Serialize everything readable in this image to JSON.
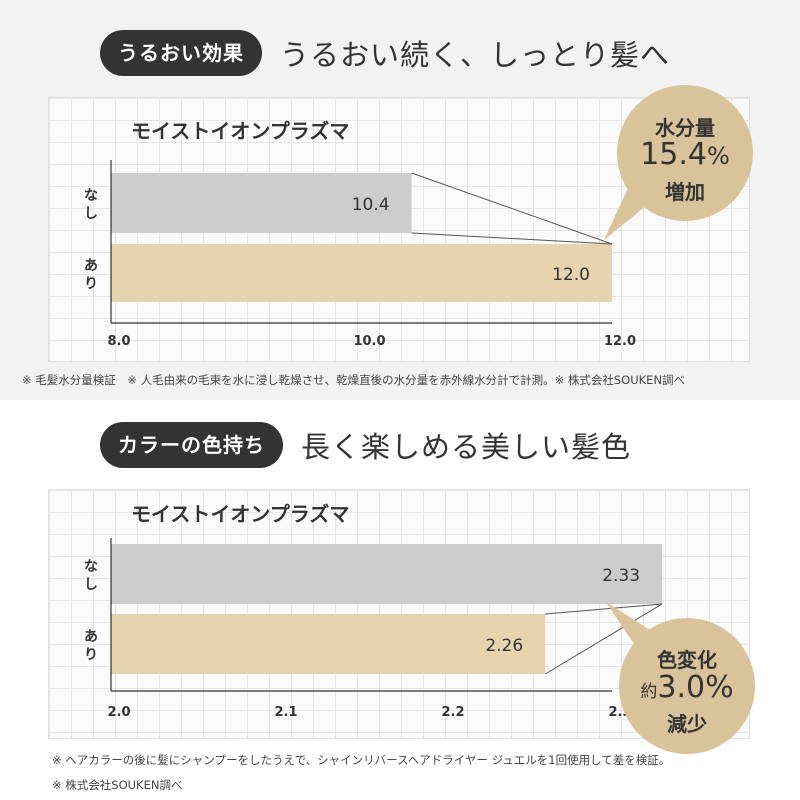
{
  "section1": {
    "pill": "うるおい効果",
    "headline": "うるおい続く、しっとり髪へ",
    "badge": {
      "line1": "水分量",
      "number": "15.4",
      "unit": "%",
      "line3": "増加"
    },
    "note": "※ 毛髪水分量検証　※ 人毛由来の毛束を水に浸し乾燥させ、乾燥直後の水分量を赤外線水分計で計測。※ 株式会社SOUKEN調べ"
  },
  "section2": {
    "pill": "カラーの色持ち",
    "headline": "長く楽しめる美しい髪色",
    "badge": {
      "line1": "色変化",
      "prefix": "約",
      "number": "3.0%",
      "line3": "減少"
    },
    "note1": "※ ヘアカラーの後に髪にシャンプーをしたうえで、シャインリバースヘアドライヤー ジュエルを1回使用して差を検証。",
    "note2": "※ 株式会社SOUKEN調べ"
  },
  "colors": {
    "dark": "#333333",
    "gray_bar": "#cccccc",
    "gold_bar": "#e6d4ae",
    "badge": "#d9c39a"
  },
  "chart_data": [
    {
      "type": "bar",
      "orientation": "horizontal",
      "title": "モイストイオンプラズマ",
      "categories": [
        "なし",
        "あり"
      ],
      "values": [
        10.4,
        12.0
      ],
      "value_labels": [
        "10.4",
        "12.0"
      ],
      "xlim": [
        8.0,
        12.0
      ],
      "ticks": [
        "8.0",
        "10.0",
        "12.0"
      ],
      "grid": true
    },
    {
      "type": "bar",
      "orientation": "horizontal",
      "title": "モイストイオンプラズマ",
      "categories": [
        "なし",
        "あり"
      ],
      "values": [
        2.33,
        2.26
      ],
      "value_labels": [
        "2.33",
        "2.26"
      ],
      "xlim": [
        2.0,
        2.3
      ],
      "ticks": [
        "2.0",
        "2.1",
        "2.2",
        "2.3"
      ],
      "grid": true
    }
  ]
}
